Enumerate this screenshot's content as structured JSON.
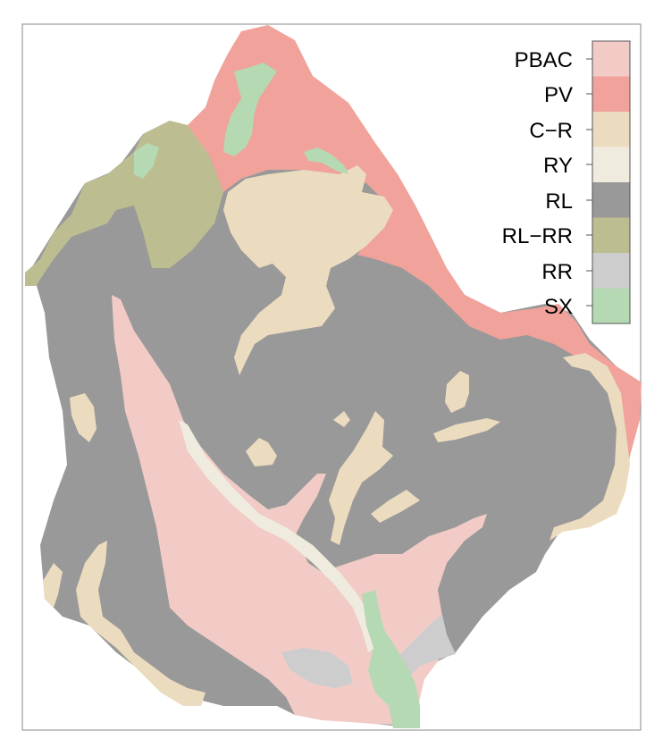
{
  "legend": {
    "title": "",
    "items": [
      {
        "label": "PBAC",
        "color": "#f2cbc7"
      },
      {
        "label": "PV",
        "color": "#f0a29b"
      },
      {
        "label": "C−R",
        "color": "#ecdcbf"
      },
      {
        "label": "RY",
        "color": "#efebde"
      },
      {
        "label": "RL",
        "color": "#999999"
      },
      {
        "label": "RL−RR",
        "color": "#bdbd92"
      },
      {
        "label": "RR",
        "color": "#cdcdcd"
      },
      {
        "label": "SX",
        "color": "#b5d9b2"
      }
    ]
  }
}
